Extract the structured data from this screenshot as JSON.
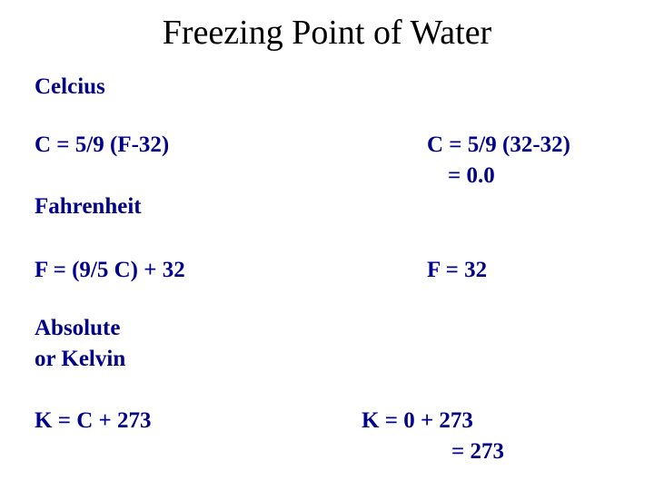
{
  "title": "Freezing Point of Water",
  "sections": [
    {
      "heading": "Celcius",
      "formula": "C = 5/9 (F-32)",
      "result": [
        "C = 5/9 (32-32)",
        "= 0.0"
      ]
    },
    {
      "heading": "Fahrenheit",
      "formula": "F = (9/5 C) + 32",
      "result": [
        "F = 32"
      ]
    },
    {
      "heading": "Absolute",
      "heading2": "or Kelvin",
      "formula": "K = C + 273",
      "result": [
        "K = 0 + 273",
        "= 273"
      ]
    }
  ]
}
